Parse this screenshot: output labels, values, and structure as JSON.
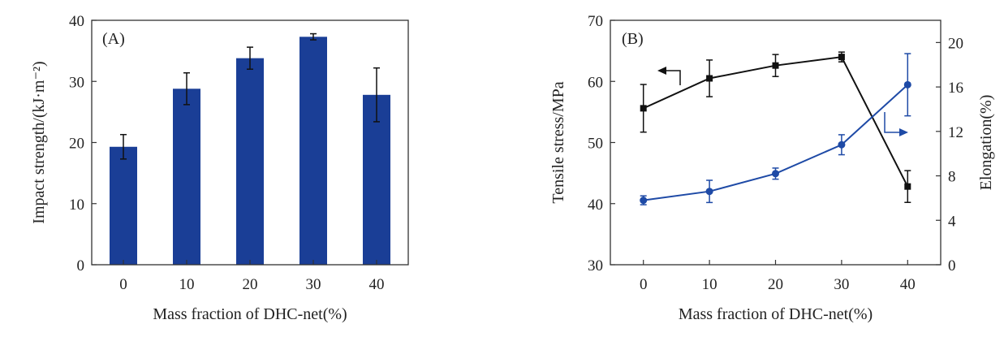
{
  "chart_data": [
    {
      "type": "bar",
      "panel_label": "(A)",
      "xlabel": "Mass fraction of DHC-net(%)",
      "ylabel": "Impact strength/(kJ·m⁻²)",
      "categories": [
        "0",
        "10",
        "20",
        "30",
        "40"
      ],
      "values": [
        19.3,
        28.8,
        33.8,
        37.3,
        27.8
      ],
      "errors": [
        2.0,
        2.6,
        1.8,
        0.5,
        4.4
      ],
      "ylim": [
        0,
        40
      ],
      "yticks": [
        "0",
        "10",
        "20",
        "30",
        "40"
      ],
      "grid": false,
      "bar_color": "#1a3e96"
    },
    {
      "type": "line",
      "panel_label": "(B)",
      "xlabel": "Mass fraction of DHC-net(%)",
      "ylabel": "Tensile stress/MPa",
      "y2label": "Elongation(%)",
      "x": [
        0,
        10,
        20,
        30,
        40
      ],
      "xticks": [
        "0",
        "10",
        "20",
        "30",
        "40"
      ],
      "xlim": [
        -5,
        45
      ],
      "ylim": [
        30,
        70
      ],
      "yticks": [
        "30",
        "40",
        "50",
        "60",
        "70"
      ],
      "y2lim": [
        0,
        22
      ],
      "y2ticks": [
        "0",
        "4",
        "8",
        "12",
        "16",
        "20"
      ],
      "grid": false,
      "series": [
        {
          "axis": "left",
          "marker": "square",
          "color": "#111111",
          "values": [
            55.6,
            60.5,
            62.6,
            64.0,
            42.8
          ],
          "errors": [
            3.9,
            3.0,
            1.8,
            0.8,
            2.6
          ]
        },
        {
          "axis": "right",
          "marker": "circle",
          "color": "#1e4aa6",
          "values": [
            5.8,
            6.6,
            8.2,
            10.8,
            16.2
          ],
          "errors": [
            0.4,
            1.0,
            0.5,
            0.9,
            2.8
          ]
        }
      ]
    }
  ]
}
